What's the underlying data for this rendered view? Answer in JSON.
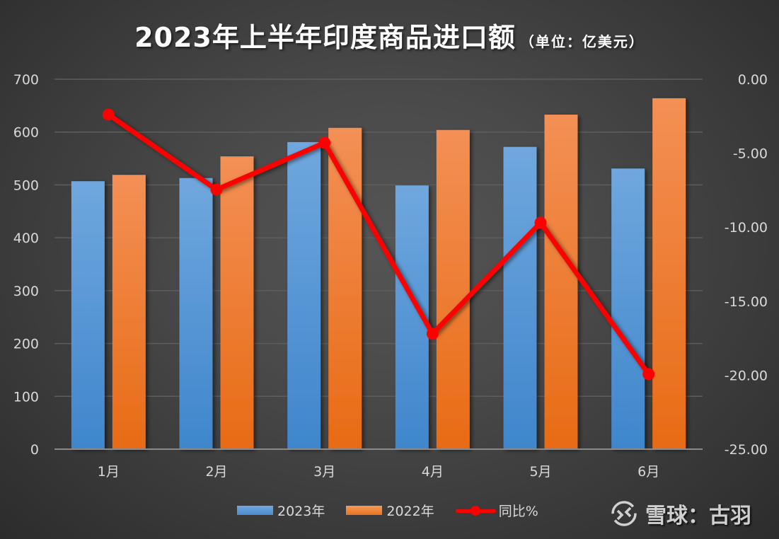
{
  "title": {
    "main": "2023年上半年印度商品进口额",
    "unit": "（单位：亿美元）"
  },
  "legend": {
    "items": [
      {
        "label": "2023年",
        "color": "#5b9bd5"
      },
      {
        "label": "2022年",
        "color": "#ed7d31"
      },
      {
        "label": "同比%",
        "color": "#ff0000"
      }
    ]
  },
  "watermark": {
    "text": "雪球：古羽"
  },
  "colors": {
    "series_2023": "#5b9bd5",
    "series_2022": "#ed7d31",
    "yoy_line": "#ff0000",
    "gridline": "#5e5e5e",
    "axis_text": "#d9d9d9"
  },
  "chart_data": {
    "type": "bar",
    "title": "2023年上半年印度商品进口额（单位：亿美元）",
    "categories": [
      "1月",
      "2月",
      "3月",
      "4月",
      "5月",
      "6月"
    ],
    "series": [
      {
        "name": "2023年",
        "type": "bar",
        "axis": "left",
        "values": [
          507,
          513,
          581,
          499,
          572,
          531
        ]
      },
      {
        "name": "2022年",
        "type": "bar",
        "axis": "left",
        "values": [
          519,
          554,
          608,
          604,
          633,
          664
        ]
      },
      {
        "name": "同比%",
        "type": "line",
        "axis": "right",
        "values": [
          -2.39,
          -7.46,
          -4.3,
          -17.2,
          -9.7,
          -19.93
        ]
      }
    ],
    "xlabel": "",
    "ylabel": "",
    "ylim": [
      0,
      700
    ],
    "yticks": [
      "0",
      "100",
      "200",
      "300",
      "400",
      "500",
      "600",
      "700"
    ],
    "y2lim": [
      -25,
      0
    ],
    "y2ticks": [
      "-25.00",
      "-20.00",
      "-15.00",
      "-10.00",
      "-5.00",
      "0.00"
    ],
    "grid": true,
    "legend_position": "bottom"
  }
}
